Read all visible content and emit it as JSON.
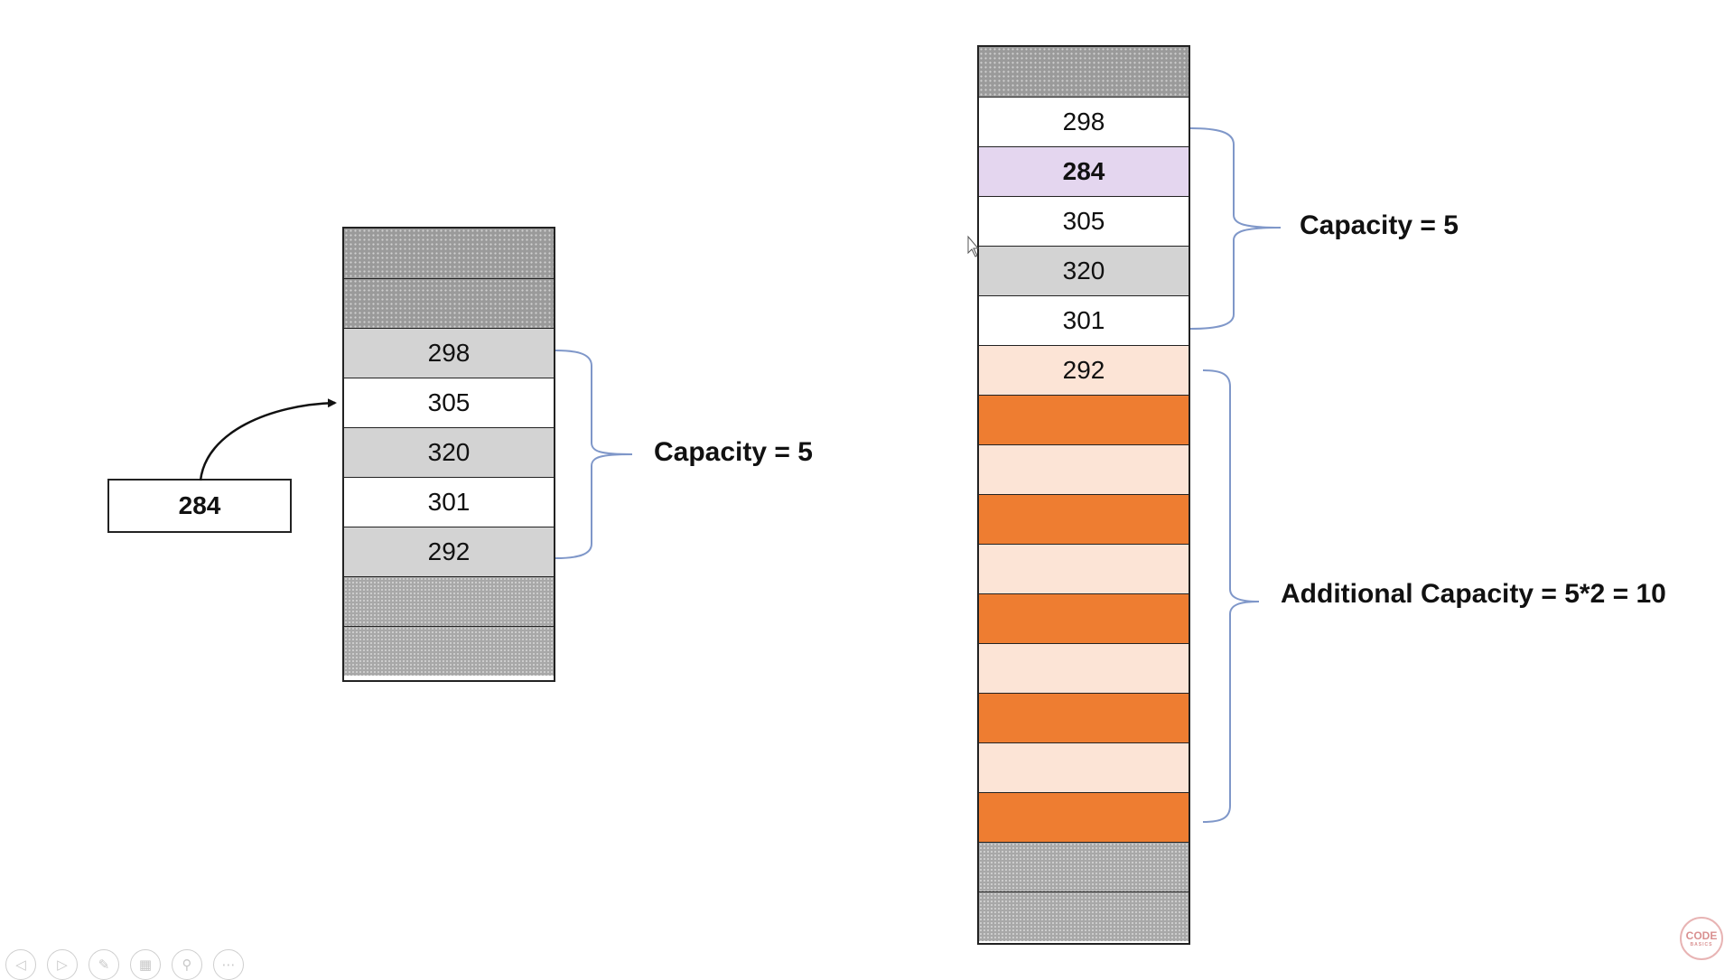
{
  "left_stack": [
    {
      "value": "",
      "style": "dotted"
    },
    {
      "value": "",
      "style": "dotted"
    },
    {
      "value": "298",
      "style": "gray"
    },
    {
      "value": "305",
      "style": "white"
    },
    {
      "value": "320",
      "style": "gray"
    },
    {
      "value": "301",
      "style": "white"
    },
    {
      "value": "292",
      "style": "gray"
    },
    {
      "value": "",
      "style": "dotted-dense"
    },
    {
      "value": "",
      "style": "dotted-dense"
    }
  ],
  "right_stack": [
    {
      "value": "",
      "style": "dotted"
    },
    {
      "value": "298",
      "style": "white"
    },
    {
      "value": "284",
      "style": "purple"
    },
    {
      "value": "305",
      "style": "white"
    },
    {
      "value": "320",
      "style": "gray"
    },
    {
      "value": "301",
      "style": "white"
    },
    {
      "value": "292",
      "style": "peach"
    },
    {
      "value": "",
      "style": "orange"
    },
    {
      "value": "",
      "style": "peach"
    },
    {
      "value": "",
      "style": "orange"
    },
    {
      "value": "",
      "style": "peach"
    },
    {
      "value": "",
      "style": "orange"
    },
    {
      "value": "",
      "style": "peach"
    },
    {
      "value": "",
      "style": "orange"
    },
    {
      "value": "",
      "style": "peach"
    },
    {
      "value": "",
      "style": "orange"
    },
    {
      "value": "",
      "style": "dotted-dense"
    },
    {
      "value": "",
      "style": "dotted-dense"
    }
  ],
  "new_element": "284",
  "labels": {
    "left_capacity": "Capacity = 5",
    "right_capacity": "Capacity = 5",
    "additional_capacity": "Additional Capacity = 5*2 = 10"
  },
  "colors": {
    "brace": "#7f97c9",
    "orange": "#ee7d31",
    "peach": "#fce4d6",
    "purple": "#e4d6ef",
    "gray": "#d3d3d3"
  },
  "controls": [
    "prev-icon",
    "next-icon",
    "pen-icon",
    "slides-icon",
    "zoom-icon",
    "more-icon"
  ],
  "logo": {
    "text": "CODE",
    "subtext": "BASICS"
  }
}
